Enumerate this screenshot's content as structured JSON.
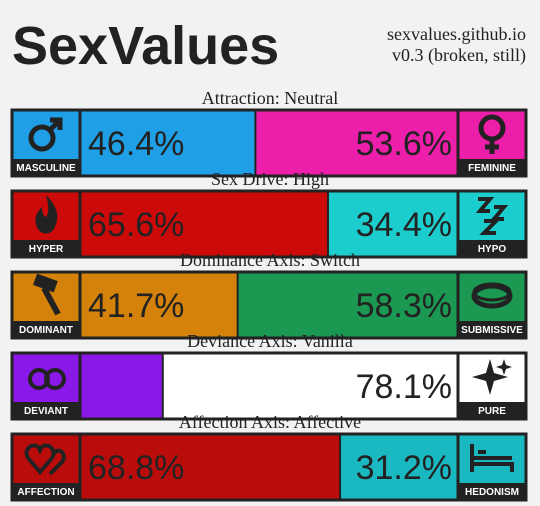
{
  "header": {
    "title": "SexValues",
    "site": "sexvalues.github.io",
    "version": "v0.3 (broken, still)"
  },
  "axes": [
    {
      "title": "Attraction: Neutral",
      "left_label": "MASCULINE",
      "right_label": "FEMININE",
      "left_value": 46.4,
      "right_value": 53.6,
      "left_value_label": "46.4%",
      "right_value_label": "53.6%",
      "left_color": "#1e9fe6",
      "right_color": "#ec1eaa"
    },
    {
      "title": "Sex Drive: High",
      "left_label": "HYPER",
      "right_label": "HYPO",
      "left_value": 65.6,
      "right_value": 34.4,
      "left_value_label": "65.6%",
      "right_value_label": "34.4%",
      "left_color": "#cc0a0a",
      "right_color": "#1ccdcd"
    },
    {
      "title": "Dominance Axis: Switch",
      "left_label": "DOMINANT",
      "right_label": "SUBMISSIVE",
      "left_value": 41.7,
      "right_value": 58.3,
      "left_value_label": "41.7%",
      "right_value_label": "58.3%",
      "left_color": "#d4820a",
      "right_color": "#1b9852"
    },
    {
      "title": "Deviance Axis: Vanilla",
      "left_label": "DEVIANT",
      "right_label": "PURE",
      "left_value": 21.9,
      "right_value": 78.1,
      "right_value_label": "78.1%",
      "left_color": "#8a18e8",
      "right_color": "#ffffff"
    },
    {
      "title": "Affection Axis: Affective",
      "left_label": "AFFECTION",
      "right_label": "HEDONISM",
      "left_value": 68.8,
      "right_value": 31.2,
      "left_value_label": "68.8%",
      "right_value_label": "31.2%",
      "left_color": "#bb0c0c",
      "right_color": "#1ab9c2"
    }
  ]
}
